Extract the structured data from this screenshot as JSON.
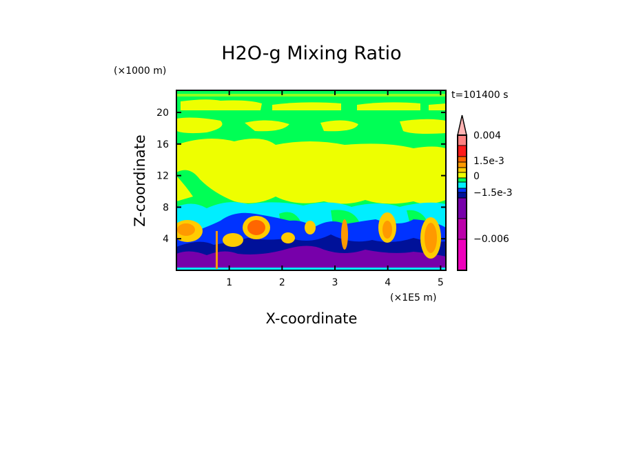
{
  "chart_data": {
    "type": "heatmap",
    "title": "H2O-g Mixing Ratio",
    "xlabel": "X-coordinate",
    "ylabel": "Z-coordinate",
    "x_unit": "(×1E5 m)",
    "y_unit": "(×1000 m)",
    "time_label": "t=101400 s",
    "xlim": [
      0,
      5.1
    ],
    "ylim": [
      0,
      22.8
    ],
    "x_ticks": [
      1,
      2,
      3,
      4,
      5
    ],
    "y_ticks": [
      4,
      8,
      12,
      16,
      20
    ],
    "colorbar": {
      "labels": [
        {
          "text": "0.004",
          "value": 0.004
        },
        {
          "text": "1.5e-3",
          "value": 0.0015
        },
        {
          "text": "0",
          "value": 0
        },
        {
          "text": "−1.5e-3",
          "value": -0.0015
        },
        {
          "text": "−0.006",
          "value": -0.006
        }
      ],
      "levels": [
        {
          "from": 0.004,
          "to": 0.005,
          "color": "#ffb3b3",
          "extend": true
        },
        {
          "from": 0.003,
          "to": 0.004,
          "color": "#ff8080"
        },
        {
          "from": 0.002,
          "to": 0.003,
          "color": "#ff1a1a"
        },
        {
          "from": 0.0015,
          "to": 0.002,
          "color": "#ff6600"
        },
        {
          "from": 0.001,
          "to": 0.0015,
          "color": "#ff9900"
        },
        {
          "from": 0.0005,
          "to": 0.001,
          "color": "#ffcc00"
        },
        {
          "from": 0,
          "to": 0.0005,
          "color": "#eeff00"
        },
        {
          "from": -0.0005,
          "to": 0,
          "color": "#00ff55"
        },
        {
          "from": -0.001,
          "to": -0.0005,
          "color": "#00eeff"
        },
        {
          "from": -0.0015,
          "to": -0.001,
          "color": "#0033ff"
        },
        {
          "from": -0.003,
          "to": -0.0015,
          "color": "#001199"
        },
        {
          "from": -0.0045,
          "to": -0.003,
          "color": "#7700aa"
        },
        {
          "from": -0.006,
          "to": -0.0045,
          "color": "#bb00aa"
        },
        {
          "from": -0.009,
          "to": -0.006,
          "color": "#ee00bb"
        }
      ]
    }
  }
}
